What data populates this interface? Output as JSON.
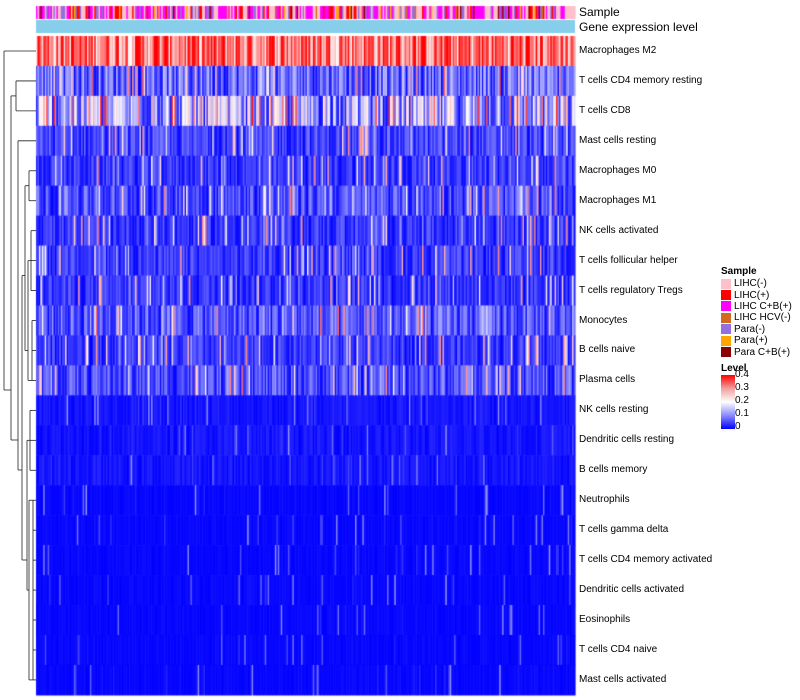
{
  "chart_data": {
    "type": "heatmap",
    "title": "",
    "annotation_rows": [
      "Sample",
      "Gene expression level"
    ],
    "rows": [
      {
        "name": "Macrophages M2",
        "mean": 0.32
      },
      {
        "name": "T cells CD4 memory resting",
        "mean": 0.1
      },
      {
        "name": "T cells CD8",
        "mean": 0.15
      },
      {
        "name": "Mast cells resting",
        "mean": 0.06
      },
      {
        "name": "Macrophages M0",
        "mean": 0.05
      },
      {
        "name": "Macrophages M1",
        "mean": 0.07
      },
      {
        "name": "NK cells activated",
        "mean": 0.05
      },
      {
        "name": "T cells follicular helper",
        "mean": 0.05
      },
      {
        "name": "T cells regulatory  Tregs",
        "mean": 0.05
      },
      {
        "name": "Monocytes",
        "mean": 0.08
      },
      {
        "name": "B cells naive",
        "mean": 0.05
      },
      {
        "name": "Plasma cells",
        "mean": 0.07
      },
      {
        "name": "NK cells resting",
        "mean": 0.03
      },
      {
        "name": "Dendritic cells resting",
        "mean": 0.03
      },
      {
        "name": "B cells memory",
        "mean": 0.03
      },
      {
        "name": "Neutrophils",
        "mean": 0.01
      },
      {
        "name": "T cells gamma delta",
        "mean": 0.01
      },
      {
        "name": "T cells CD4 memory activated",
        "mean": 0.01
      },
      {
        "name": "Dendritic cells activated",
        "mean": 0.01
      },
      {
        "name": "Eosinophils",
        "mean": 0.01
      },
      {
        "name": "T cells CD4 naive",
        "mean": 0.01
      },
      {
        "name": "Mast cells activated",
        "mean": 0.01
      }
    ],
    "legend_sample": {
      "title": "Sample",
      "items": [
        {
          "label": "LIHC(-)",
          "color": "#ffc0cb"
        },
        {
          "label": "LIHC(+)",
          "color": "#ff0000"
        },
        {
          "label": "LIHC C+B(+)",
          "color": "#ff00ff"
        },
        {
          "label": "LIHC HCV(-)",
          "color": "#d2691e"
        },
        {
          "label": "Para(-)",
          "color": "#9370db"
        },
        {
          "label": "Para(+)",
          "color": "#ffa500"
        },
        {
          "label": "Para C+B(+)",
          "color": "#8b0000"
        }
      ]
    },
    "legend_level": {
      "title": "Level",
      "ticks": [
        "0.4",
        "0.3",
        "0.2",
        "0.1",
        "0"
      ],
      "range": [
        0,
        0.4
      ],
      "colors": {
        "low": "#0000ff",
        "mid": "#ffffff",
        "high": "#ff0000"
      }
    },
    "gene_expression_color": "#87ceeb",
    "num_columns": 370
  }
}
